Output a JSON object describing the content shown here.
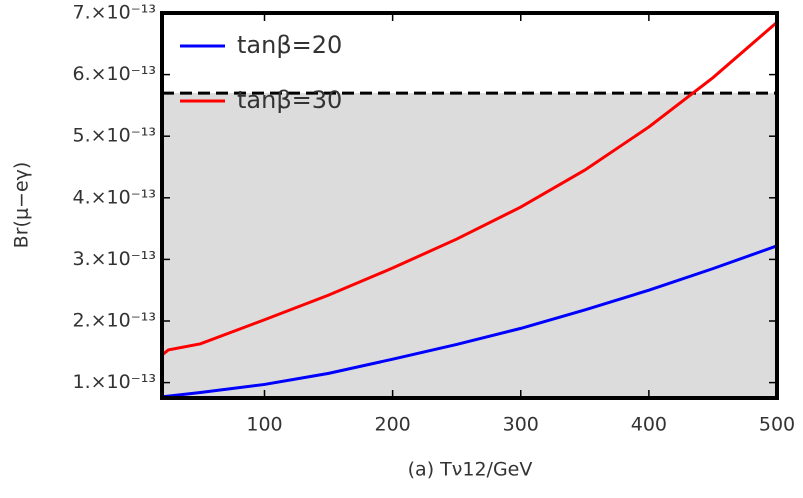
{
  "chart_data": {
    "type": "line",
    "x_label": "(a) Tν12/GeV",
    "y_label": "Br(μ−eγ)",
    "x": [
      20,
      25,
      50,
      100,
      150,
      200,
      250,
      300,
      350,
      400,
      450,
      500
    ],
    "series": [
      {
        "name": "tanβ=20",
        "color": "#0000ff",
        "values": [
          7.7e-14,
          7.8e-14,
          8.4e-14,
          9.7e-14,
          1.15e-13,
          1.38e-13,
          1.62e-13,
          1.88e-13,
          2.18e-13,
          2.5e-13,
          2.85e-13,
          3.22e-13
        ]
      },
      {
        "name": "tanβ=30",
        "color": "#ff0000",
        "values": [
          1.45e-13,
          1.53e-13,
          1.63e-13,
          2.02e-13,
          2.42e-13,
          2.86e-13,
          3.33e-13,
          3.85e-13,
          4.45e-13,
          5.15e-13,
          5.95e-13,
          6.85e-13
        ]
      }
    ],
    "limit": 5.7e-13,
    "xlim": [
      20,
      500
    ],
    "xticks": [
      100,
      200,
      300,
      400,
      500
    ],
    "ylim": [
      7.5e-14,
      7e-13
    ],
    "yticks": [
      {
        "value": 1e-13,
        "label": "1.×10⁻¹³"
      },
      {
        "value": 2e-13,
        "label": "2.×10⁻¹³"
      },
      {
        "value": 3e-13,
        "label": "3.×10⁻¹³"
      },
      {
        "value": 4e-13,
        "label": "4.×10⁻¹³"
      },
      {
        "value": 5e-13,
        "label": "5.×10⁻¹³"
      },
      {
        "value": 6e-13,
        "label": "6.×10⁻¹³"
      },
      {
        "value": 7e-13,
        "label": "7.×10⁻¹³"
      }
    ],
    "legend": "top-left"
  }
}
